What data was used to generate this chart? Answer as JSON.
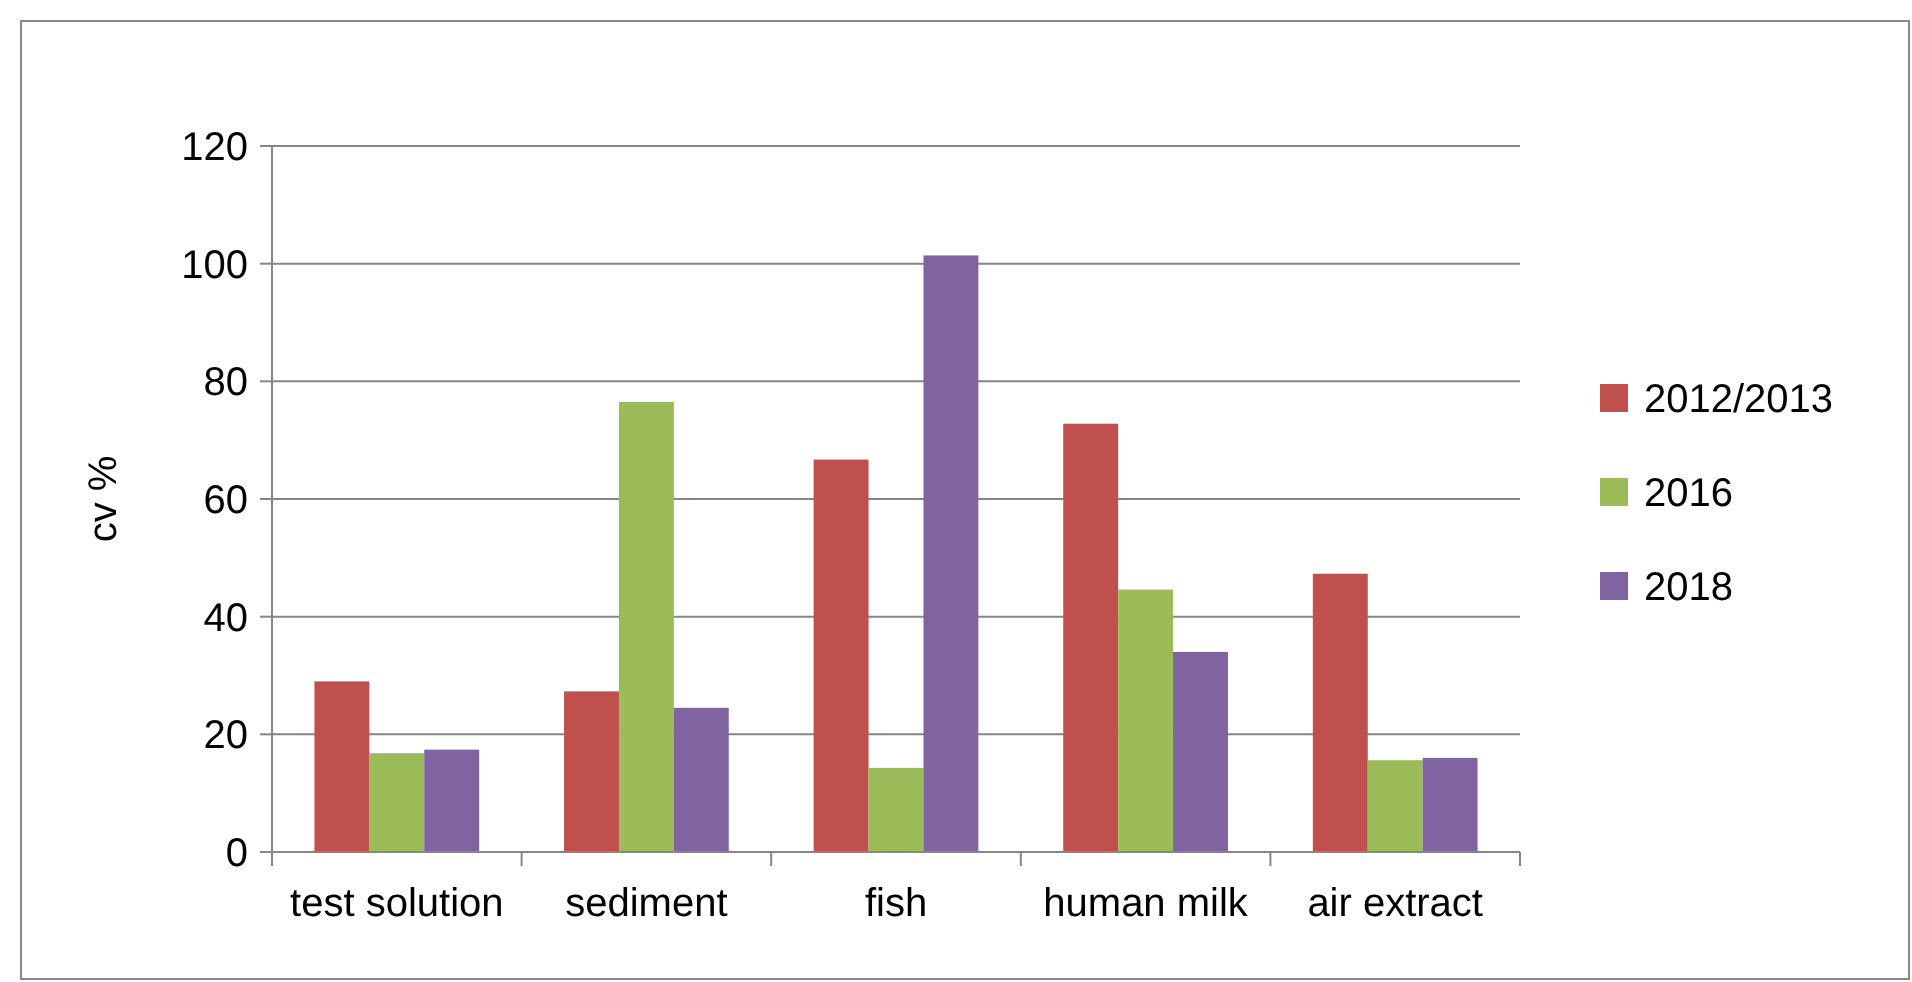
{
  "chart_data": {
    "type": "bar",
    "ylabel": "cv %",
    "categories": [
      "test solution",
      "sediment",
      "fish",
      "human milk",
      "air extract"
    ],
    "series": [
      {
        "name": "2012/2013",
        "color": "#c0504d",
        "values": [
          29,
          27.3,
          66.7,
          72.8,
          47.3
        ]
      },
      {
        "name": "2016",
        "color": "#9bbb59",
        "values": [
          16.8,
          76.5,
          14.3,
          44.6,
          15.6
        ]
      },
      {
        "name": "2018",
        "color": "#8064a2",
        "values": [
          17.4,
          24.5,
          101.4,
          34,
          16
        ]
      }
    ],
    "ylim": [
      0,
      120
    ],
    "yticks": [
      0,
      20,
      40,
      60,
      80,
      100,
      120
    ],
    "grid": "y",
    "legend": "right"
  }
}
